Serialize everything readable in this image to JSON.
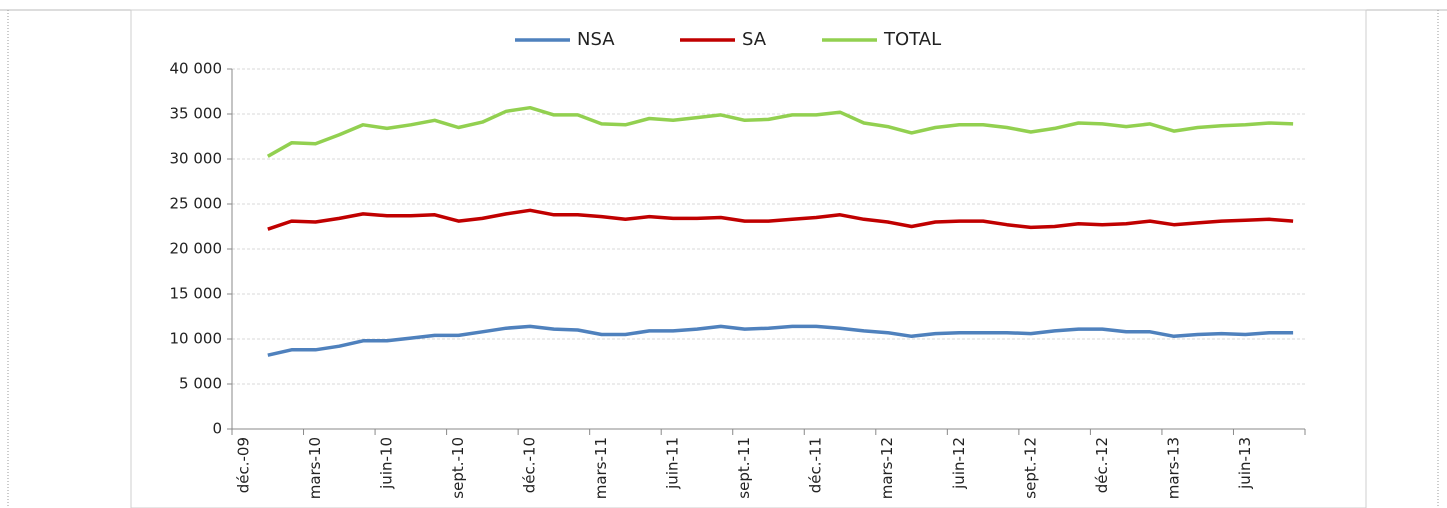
{
  "chart_data": {
    "type": "line",
    "categories": [
      "déc.-09",
      null,
      null,
      "mars-10",
      null,
      null,
      "juin-10",
      null,
      null,
      "sept.-10",
      null,
      null,
      "déc.-10",
      null,
      null,
      "mars-11",
      null,
      null,
      "juin-11",
      null,
      null,
      "sept.-11",
      null,
      null,
      "déc.-11",
      null,
      null,
      "mars-12",
      null,
      null,
      "juin-12",
      null,
      null,
      "sept.-12",
      null,
      null,
      "déc.-12",
      null,
      null,
      "mars-13",
      null,
      null,
      "juin-13",
      null,
      null
    ],
    "series": [
      {
        "name": "NSA",
        "color": "#4f81bd",
        "values": [
          null,
          8200,
          8800,
          8800,
          9200,
          9800,
          9800,
          10100,
          10400,
          10400,
          10800,
          11200,
          11400,
          11100,
          11000,
          10500,
          10500,
          10900,
          10900,
          11100,
          11400,
          11100,
          11200,
          11400,
          11400,
          11200,
          10900,
          10700,
          10300,
          10600,
          10700,
          10700,
          10700,
          10600,
          10900,
          11100,
          11100,
          10800,
          10800,
          10300,
          10500,
          10600,
          10500,
          10700,
          10700
        ]
      },
      {
        "name": "SA",
        "color": "#c00000",
        "values": [
          null,
          22200,
          23100,
          23000,
          23400,
          23900,
          23700,
          23700,
          23800,
          23100,
          23400,
          23900,
          24300,
          23800,
          23800,
          23600,
          23300,
          23600,
          23400,
          23400,
          23500,
          23100,
          23100,
          23300,
          23500,
          23800,
          23300,
          23000,
          22500,
          23000,
          23100,
          23100,
          22700,
          22400,
          22500,
          22800,
          22700,
          22800,
          23100,
          22700,
          22900,
          23100,
          23200,
          23300,
          23100
        ]
      },
      {
        "name": "TOTAL",
        "color": "#92d050",
        "values": [
          null,
          30300,
          31800,
          31700,
          32700,
          33800,
          33400,
          33800,
          34300,
          33500,
          34100,
          35300,
          35700,
          34900,
          34900,
          33900,
          33800,
          34500,
          34300,
          34600,
          34900,
          34300,
          34400,
          34900,
          34900,
          35200,
          34000,
          33600,
          32900,
          33500,
          33800,
          33800,
          33500,
          33000,
          33400,
          34000,
          33900,
          33600,
          33900,
          33100,
          33500,
          33700,
          33800,
          34000,
          33900
        ]
      }
    ],
    "ylim": [
      0,
      40000
    ],
    "yticks": [
      {
        "value": 0,
        "label": "0"
      },
      {
        "value": 5000,
        "label": "5 000"
      },
      {
        "value": 10000,
        "label": "10 000"
      },
      {
        "value": 15000,
        "label": "15 000"
      },
      {
        "value": 20000,
        "label": "20 000"
      },
      {
        "value": 25000,
        "label": "25 000"
      },
      {
        "value": 30000,
        "label": "30 000"
      },
      {
        "value": 35000,
        "label": "35 000"
      },
      {
        "value": 40000,
        "label": "40 000"
      }
    ],
    "grid": true,
    "legend": "top"
  }
}
